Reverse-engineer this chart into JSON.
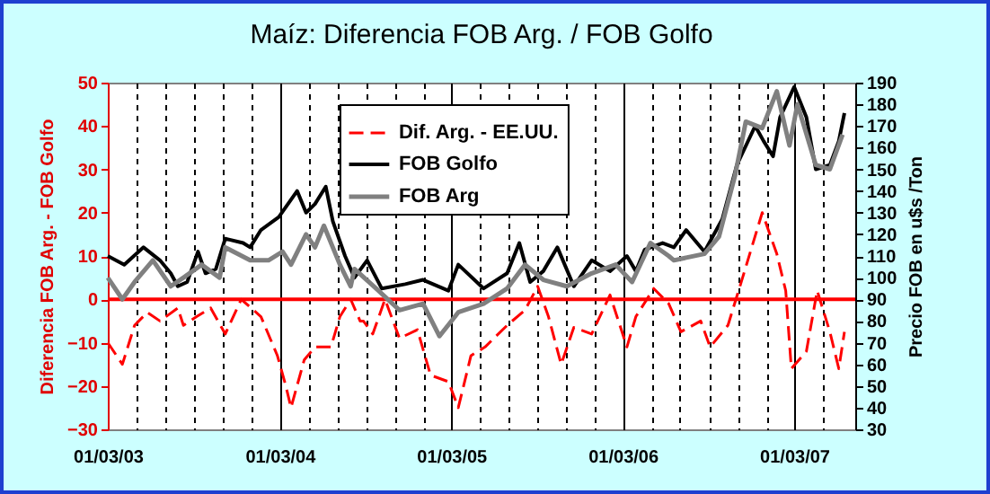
{
  "chart_data": {
    "type": "line",
    "title": "Maíz: Diferencia FOB Arg. / FOB Golfo",
    "ylabel": "Diferencia FOB Arg. - FOB Golfo",
    "y2label": "Precio FOB en u$s /Ton",
    "xlim": [
      "2003-03-01",
      "2007-07-09"
    ],
    "xticks": [
      {
        "value": "2003-03-01",
        "label": "01/03/03"
      },
      {
        "value": "2003-05-01",
        "label": null
      },
      {
        "value": "2003-07-01",
        "label": null
      },
      {
        "value": "2003-09-01",
        "label": null
      },
      {
        "value": "2003-11-01",
        "label": null
      },
      {
        "value": "2004-01-01",
        "label": null
      },
      {
        "value": "2004-03-01",
        "label": "01/03/04"
      },
      {
        "value": "2004-05-01",
        "label": null
      },
      {
        "value": "2004-07-01",
        "label": null
      },
      {
        "value": "2004-09-01",
        "label": null
      },
      {
        "value": "2004-11-01",
        "label": null
      },
      {
        "value": "2005-01-01",
        "label": null
      },
      {
        "value": "2005-03-01",
        "label": "01/03/05"
      },
      {
        "value": "2005-05-01",
        "label": null
      },
      {
        "value": "2005-07-01",
        "label": null
      },
      {
        "value": "2005-09-01",
        "label": null
      },
      {
        "value": "2005-11-01",
        "label": null
      },
      {
        "value": "2006-01-01",
        "label": null
      },
      {
        "value": "2006-03-01",
        "label": "01/03/06"
      },
      {
        "value": "2006-05-01",
        "label": null
      },
      {
        "value": "2006-07-01",
        "label": null
      },
      {
        "value": "2006-09-01",
        "label": null
      },
      {
        "value": "2006-11-01",
        "label": null
      },
      {
        "value": "2007-01-01",
        "label": null
      },
      {
        "value": "2007-03-01",
        "label": "01/03/07"
      },
      {
        "value": "2007-05-01",
        "label": null
      }
    ],
    "ylim": [
      -30,
      50
    ],
    "yticks": [
      -30,
      -20,
      -10,
      0,
      10,
      20,
      30,
      40,
      50
    ],
    "y2lim": [
      30,
      190
    ],
    "y2ticks": [
      30,
      40,
      50,
      60,
      70,
      80,
      90,
      100,
      110,
      120,
      130,
      140,
      150,
      160,
      170,
      180,
      190
    ],
    "grid": "x",
    "legend": "top",
    "marker": "none",
    "ref_lines": [
      {
        "axis": "y",
        "value": 0,
        "color": "#ff0000"
      }
    ],
    "series": [
      {
        "name": "Dif. Arg. - EE.UU.",
        "color": "#ff0000",
        "line_style": "dashed",
        "x": [
          "2003-03-01",
          "2003-04-01",
          "2003-04-27",
          "2003-05-24",
          "2003-06-20",
          "2003-07-28",
          "2003-08-09",
          "2003-09-06",
          "2003-10-06",
          "2003-11-06",
          "2003-12-10",
          "2004-01-21",
          "2004-02-25",
          "2004-03-14",
          "2004-03-25",
          "2004-04-22",
          "2004-05-15",
          "2004-06-18",
          "2004-07-07",
          "2004-07-30",
          "2004-08-19",
          "2004-08-26",
          "2004-09-15",
          "2004-10-11",
          "2004-11-11",
          "2004-12-19",
          "2005-01-16",
          "2005-02-23",
          "2005-03-16",
          "2005-04-12",
          "2005-05-12",
          "2005-06-28",
          "2005-08-05",
          "2005-09-01",
          "2005-09-24",
          "2005-10-21",
          "2005-11-17",
          "2005-12-25",
          "2006-02-02",
          "2006-03-10",
          "2006-03-29",
          "2006-05-06",
          "2006-06-07",
          "2006-07-03",
          "2006-08-14",
          "2006-09-03",
          "2006-10-11",
          "2006-11-07",
          "2006-12-23",
          "2007-01-23",
          "2007-02-11",
          "2007-02-23",
          "2007-03-27",
          "2007-04-19",
          "2007-05-16",
          "2007-06-04",
          "2007-06-16"
        ],
        "values": [
          -10,
          -15,
          -6,
          -3,
          -5,
          -2,
          -6,
          -4,
          -2,
          -8,
          0,
          -4,
          -13,
          -20,
          -25,
          -14,
          -11,
          -11,
          -4,
          0,
          -5,
          -5,
          -8,
          0,
          -9,
          -7,
          -17.5,
          -19,
          -25,
          -13,
          -11,
          -6,
          -2.5,
          3,
          -4,
          -15,
          -6.5,
          -8,
          1,
          -11,
          -4,
          2.5,
          -1,
          -7.5,
          -5,
          -11,
          -6,
          3.5,
          20,
          10.5,
          2,
          -16,
          -12,
          2,
          -7.5,
          -16,
          -7.5
        ]
      },
      {
        "name": "FOB Golfo",
        "color": "#000000",
        "axis": "y2",
        "x": [
          "2003-03-01",
          "2003-04-05",
          "2003-05-16",
          "2003-06-20",
          "2003-07-13",
          "2003-07-28",
          "2003-08-17",
          "2003-09-09",
          "2003-09-25",
          "2003-10-17",
          "2003-11-06",
          "2003-12-14",
          "2003-12-29",
          "2004-01-21",
          "2004-02-28",
          "2004-04-07",
          "2004-04-26",
          "2004-05-15",
          "2004-06-07",
          "2004-06-22",
          "2004-07-18",
          "2004-08-07",
          "2004-09-03",
          "2004-10-04",
          "2004-11-23",
          "2004-12-31",
          "2005-02-23",
          "2005-03-16",
          "2005-05-09",
          "2005-06-28",
          "2005-07-24",
          "2005-08-16",
          "2005-09-13",
          "2005-10-13",
          "2005-11-17",
          "2005-12-25",
          "2006-02-02",
          "2006-03-10",
          "2006-03-29",
          "2006-04-17",
          "2006-05-25",
          "2006-06-18",
          "2006-07-14",
          "2006-08-22",
          "2006-09-29",
          "2006-10-30",
          "2006-12-08",
          "2006-12-26",
          "2007-01-15",
          "2007-01-30",
          "2007-03-01",
          "2007-03-27",
          "2007-04-16",
          "2007-05-16",
          "2007-06-04",
          "2007-06-16"
        ],
        "values": [
          110,
          106,
          114,
          108,
          102,
          96,
          98,
          112,
          102,
          104,
          118,
          116,
          114,
          122,
          128,
          140,
          130,
          134,
          142,
          126,
          110,
          100,
          108,
          95,
          97,
          99,
          94,
          106,
          95,
          102,
          116,
          98,
          103,
          114,
          96,
          108,
          103,
          110,
          103,
          113,
          116,
          114,
          122,
          112,
          127,
          152,
          170,
          163,
          156,
          174,
          188,
          174,
          150,
          152,
          163,
          176
        ]
      },
      {
        "name": "FOB Arg",
        "color": "#808080",
        "axis": "y2",
        "x": [
          "2003-03-01",
          "2003-04-01",
          "2003-04-27",
          "2003-06-05",
          "2003-07-13",
          "2003-08-09",
          "2003-09-17",
          "2003-10-25",
          "2003-11-06",
          "2003-12-29",
          "2004-02-06",
          "2004-03-07",
          "2004-03-25",
          "2004-04-26",
          "2004-05-15",
          "2004-06-03",
          "2004-07-07",
          "2004-07-30",
          "2004-08-07",
          "2004-09-22",
          "2004-11-11",
          "2004-12-31",
          "2005-02-04",
          "2005-03-16",
          "2005-05-09",
          "2005-06-28",
          "2005-08-05",
          "2005-09-13",
          "2005-11-02",
          "2005-12-25",
          "2006-02-14",
          "2006-03-21",
          "2006-04-29",
          "2006-06-07",
          "2006-06-18",
          "2006-08-22",
          "2006-09-22",
          "2006-10-26",
          "2006-11-18",
          "2006-12-23",
          "2007-01-23",
          "2007-02-19",
          "2007-03-08",
          "2007-04-16",
          "2007-05-16",
          "2007-06-12"
        ],
        "values": [
          100,
          90,
          98,
          108,
          96,
          100,
          106,
          100,
          114,
          108,
          108,
          112,
          106,
          120,
          114,
          124,
          106,
          96,
          104,
          95,
          85,
          88,
          73,
          84,
          88,
          95,
          106,
          99,
          96,
          102,
          106,
          98,
          116,
          110,
          108,
          111,
          119,
          147,
          172,
          169,
          186,
          161,
          180,
          152,
          150,
          166
        ]
      }
    ]
  }
}
